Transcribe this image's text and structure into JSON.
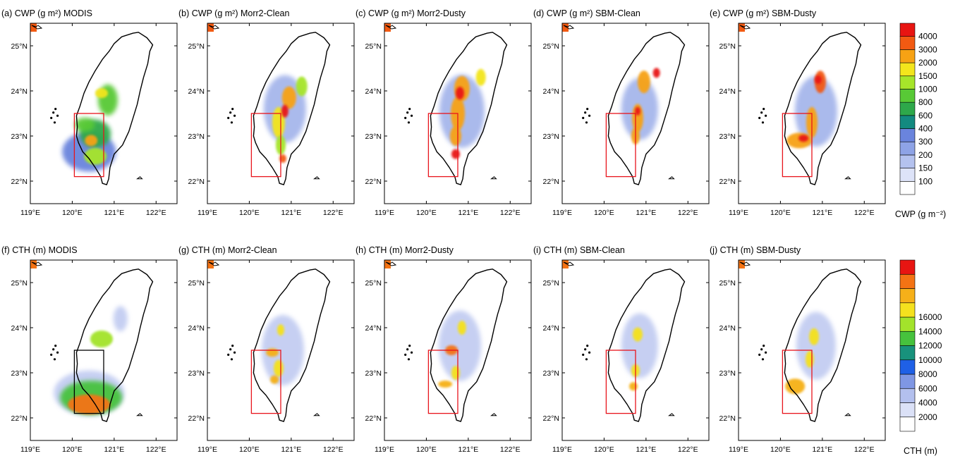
{
  "panels_top": [
    {
      "title": "(a) CWP (g m²) MODIS"
    },
    {
      "title": "(b) CWP (g m²) Morr2-Clean"
    },
    {
      "title": "(c) CWP (g m²) Morr2-Dusty"
    },
    {
      "title": "(d) CWP (g m²) SBM-Clean"
    },
    {
      "title": "(e) CWP (g m²) SBM-Dusty"
    }
  ],
  "panels_bottom": [
    {
      "title": "(f) CTH (m) MODIS"
    },
    {
      "title": "(g) CTH (m) Morr2-Clean"
    },
    {
      "title": "(h) CTH (m) Morr2-Dusty"
    },
    {
      "title": "(i) CTH (m) SBM-Clean"
    },
    {
      "title": "(j) CTH (m) SBM-Dusty"
    }
  ],
  "x_ticks": [
    "119°E",
    "120°E",
    "121°E",
    "122°E"
  ],
  "y_ticks": [
    "22°N",
    "23°N",
    "24°N",
    "25°N"
  ],
  "cwp_colorbar": {
    "label": "CWP (g m⁻²)",
    "levels": [
      "100",
      "150",
      "200",
      "300",
      "400",
      "600",
      "800",
      "1000",
      "1500",
      "2000",
      "3000",
      "4000"
    ],
    "colors": [
      "#ffffff",
      "#dde3f8",
      "#b4c2ef",
      "#8ea3e6",
      "#6a84dd",
      "#138a80",
      "#2ea84a",
      "#58c936",
      "#a6e52a",
      "#f3e51c",
      "#f7a214",
      "#f25a12",
      "#e81512"
    ]
  },
  "cth_colorbar": {
    "label": "CTH (m)",
    "levels": [
      "2000",
      "4000",
      "6000",
      "8000",
      "10000",
      "12000",
      "14000",
      "16000"
    ],
    "colors": [
      "#ffffff",
      "#dbe1f7",
      "#b3c0ee",
      "#7f97e4",
      "#1f60e6",
      "#18927c",
      "#46c23d",
      "#a3e32b",
      "#f5e11e",
      "#f6b019",
      "#f47314",
      "#e81512"
    ]
  }
}
